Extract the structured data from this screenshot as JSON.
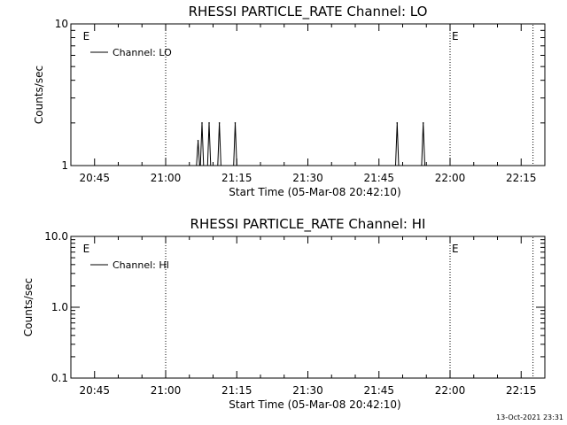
{
  "chart_data": [
    {
      "type": "line",
      "title": "RHESSI PARTICLE_RATE Channel: LO",
      "xlabel": "Start Time (05-Mar-08 20:42:10)",
      "ylabel": "Counts/sec",
      "y_scale": "log",
      "ylim": [
        1,
        10
      ],
      "y_ticks": [
        "1",
        "10"
      ],
      "xlim": [
        "20:40",
        "22:20"
      ],
      "x_ticks": [
        "20:45",
        "21:00",
        "21:15",
        "21:30",
        "21:45",
        "22:00",
        "22:15"
      ],
      "vertical_dotted_lines": [
        "21:00",
        "22:00",
        "22:17:30"
      ],
      "event_markers": [
        {
          "time": "20:42:10",
          "label": "E"
        },
        {
          "time": "22:00",
          "label": "E"
        }
      ],
      "legend": {
        "entries": [
          "Channel: LO"
        ],
        "placement": "top-left"
      },
      "series": [
        {
          "name": "Channel: LO",
          "color": "#000000",
          "points": [
            [
              "20:42:10",
              1
            ],
            [
              "21:06:30",
              1
            ],
            [
              "21:06:50",
              1.5
            ],
            [
              "21:07:10",
              1
            ],
            [
              "21:07:20",
              1
            ],
            [
              "21:07:40",
              2
            ],
            [
              "21:08:00",
              1
            ],
            [
              "21:08:50",
              1
            ],
            [
              "21:09:10",
              2
            ],
            [
              "21:09:30",
              1
            ],
            [
              "21:11:00",
              1
            ],
            [
              "21:11:20",
              2
            ],
            [
              "21:11:40",
              1
            ],
            [
              "21:14:20",
              1
            ],
            [
              "21:14:40",
              2
            ],
            [
              "21:15:00",
              1
            ],
            [
              "21:48:30",
              1
            ],
            [
              "21:48:50",
              2
            ],
            [
              "21:49:10",
              1
            ],
            [
              "21:54:00",
              1
            ],
            [
              "21:54:20",
              2
            ],
            [
              "21:54:40",
              1
            ],
            [
              "22:20:00",
              1
            ]
          ]
        }
      ]
    },
    {
      "type": "line",
      "title": "RHESSI PARTICLE_RATE Channel: HI",
      "xlabel": "Start Time (05-Mar-08 20:42:10)",
      "ylabel": "Counts/sec",
      "y_scale": "log",
      "ylim": [
        0.1,
        10
      ],
      "y_ticks": [
        "0.1",
        "1.0",
        "10.0"
      ],
      "xlim": [
        "20:40",
        "22:20"
      ],
      "x_ticks": [
        "20:45",
        "21:00",
        "21:15",
        "21:30",
        "21:45",
        "22:00",
        "22:15"
      ],
      "vertical_dotted_lines": [
        "21:00",
        "22:00",
        "22:17:30"
      ],
      "event_markers": [
        {
          "time": "20:42:10",
          "label": "E"
        },
        {
          "time": "22:00",
          "label": "E"
        }
      ],
      "legend": {
        "entries": [
          "Channel: HI"
        ],
        "placement": "top-left"
      },
      "series": [
        {
          "name": "Channel: HI",
          "color": "#000000",
          "points": []
        }
      ]
    }
  ],
  "timestamp": "13-Oct-2021 23:31"
}
